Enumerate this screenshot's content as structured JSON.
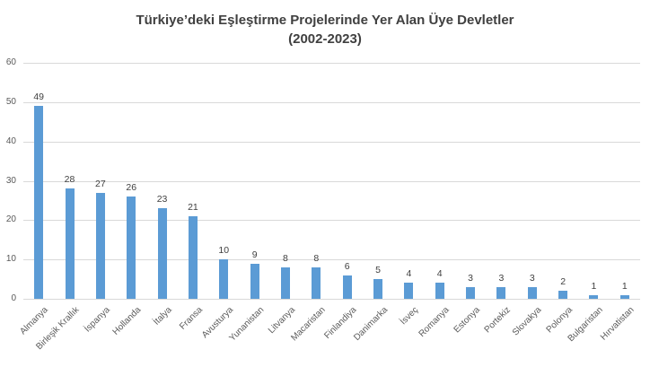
{
  "title": {
    "line1": "Türkiye’deki Eşleştirme Projelerinde Yer Alan Üye Devletler",
    "line2": "(2002-2023)"
  },
  "chart_data": {
    "type": "bar",
    "title": "Türkiye’deki Eşleştirme Projelerinde Yer Alan Üye Devletler",
    "subtitle": "(2002-2023)",
    "categories": [
      "Almanya",
      "Birleşik Krallık",
      "İspanya",
      "Hollanda",
      "İtalya",
      "Fransa",
      "Avusturya",
      "Yunanistan",
      "Litvanya",
      "Macaristan",
      "Finlandiya",
      "Danimarka",
      "İsveç",
      "Romanya",
      "Estonya",
      "Portekiz",
      "Slovakya",
      "Polonya",
      "Bulgaristan",
      "Hırvatistan"
    ],
    "values": [
      49,
      28,
      27,
      26,
      23,
      21,
      10,
      9,
      8,
      8,
      6,
      5,
      4,
      4,
      3,
      3,
      3,
      2,
      1,
      1
    ],
    "xlabel": "",
    "ylabel": "",
    "ylim": [
      0,
      60
    ],
    "yticks": [
      0,
      10,
      20,
      30,
      40,
      50,
      60
    ],
    "grid": true,
    "data_labels": true,
    "legend": "none",
    "bar_color": "#5b9bd5",
    "grid_color": "#d9d9d9",
    "title_color": "#404040",
    "axis_text_color": "#595959"
  }
}
